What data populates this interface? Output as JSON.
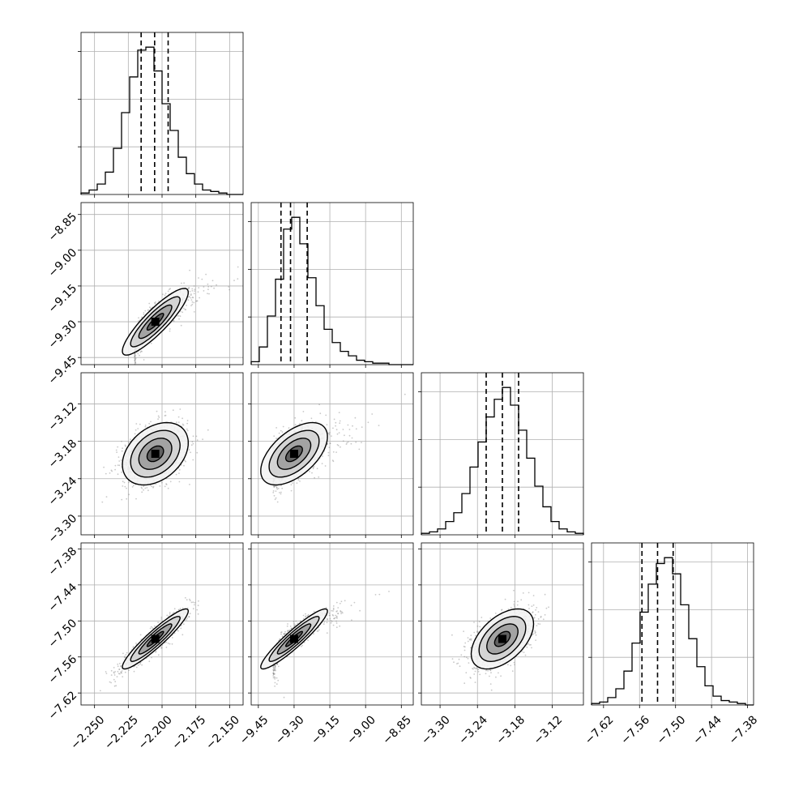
{
  "chart_data": {
    "type": "corner",
    "parameters": [
      {
        "range": [
          -2.26,
          -2.14
        ],
        "ticks": [
          -2.25,
          -2.225,
          -2.2,
          -2.175,
          -2.15
        ],
        "tick_labels": [
          "−2.250",
          "−2.225",
          "−2.200",
          "−2.175",
          "−2.150"
        ],
        "mean": -2.205,
        "sd": 0.0122,
        "quantiles": [
          -2.2155,
          -2.2055,
          -2.1955
        ]
      },
      {
        "range": [
          -9.48,
          -8.8
        ],
        "ticks": [
          -9.45,
          -9.3,
          -9.15,
          -9.0,
          -8.85
        ],
        "tick_labels": [
          "−9.45",
          "−9.30",
          "−9.15",
          "−9.00",
          "−8.85"
        ],
        "mean": -9.3,
        "sd": 0.07,
        "quantiles": [
          -9.355,
          -9.315,
          -9.245
        ]
      },
      {
        "range": [
          -3.33,
          -3.07
        ],
        "ticks": [
          -3.3,
          -3.24,
          -3.18,
          -3.12
        ],
        "tick_labels": [
          "−3.30",
          "−3.24",
          "−3.18",
          "−3.12"
        ],
        "mean": -3.2,
        "sd": 0.025,
        "quantiles": [
          -3.226,
          -3.2,
          -3.174
        ]
      },
      {
        "range": [
          -7.64,
          -7.37
        ],
        "ticks": [
          -7.62,
          -7.56,
          -7.5,
          -7.44,
          -7.38
        ],
        "tick_labels": [
          "−7.62",
          "−7.56",
          "−7.50",
          "−7.44",
          "−7.38"
        ],
        "mean": -7.53,
        "sd": 0.025,
        "quantiles": [
          -7.556,
          -7.53,
          -7.504
        ]
      }
    ],
    "histograms": [
      {
        "param": 0,
        "bins": 20,
        "counts": [
          1,
          3,
          7,
          15,
          31,
          55,
          79,
          97,
          99,
          83,
          61,
          43,
          25,
          14,
          7,
          3,
          2,
          1,
          0,
          0
        ]
      },
      {
        "param": 1,
        "bins": 20,
        "counts": [
          2,
          12,
          33,
          58,
          92,
          100,
          82,
          59,
          40,
          24,
          15,
          9,
          6,
          3,
          2,
          1,
          1,
          0,
          0,
          0
        ]
      },
      {
        "param": 2,
        "bins": 20,
        "counts": [
          1,
          2,
          4,
          9,
          15,
          28,
          46,
          63,
          80,
          92,
          100,
          88,
          71,
          52,
          33,
          19,
          9,
          4,
          2,
          1
        ]
      },
      {
        "param": 3,
        "bins": 20,
        "counts": [
          1,
          2,
          5,
          11,
          23,
          42,
          63,
          82,
          96,
          100,
          89,
          68,
          45,
          26,
          13,
          6,
          3,
          2,
          1,
          0
        ]
      }
    ],
    "pairs": [
      {
        "x": 1,
        "y": 0,
        "correlation": 0.88,
        "x_skew": true
      },
      {
        "x": 2,
        "y": 0,
        "correlation": 0.35
      },
      {
        "x": 2,
        "y": 1,
        "correlation": 0.55
      },
      {
        "x": 3,
        "y": 0,
        "correlation": 0.93
      },
      {
        "x": 3,
        "y": 1,
        "correlation": 0.93
      },
      {
        "x": 3,
        "y": 2,
        "correlation": 0.5
      }
    ],
    "contour_levels": [
      0.5,
      1.0,
      1.5,
      2.0
    ],
    "grid": true
  }
}
